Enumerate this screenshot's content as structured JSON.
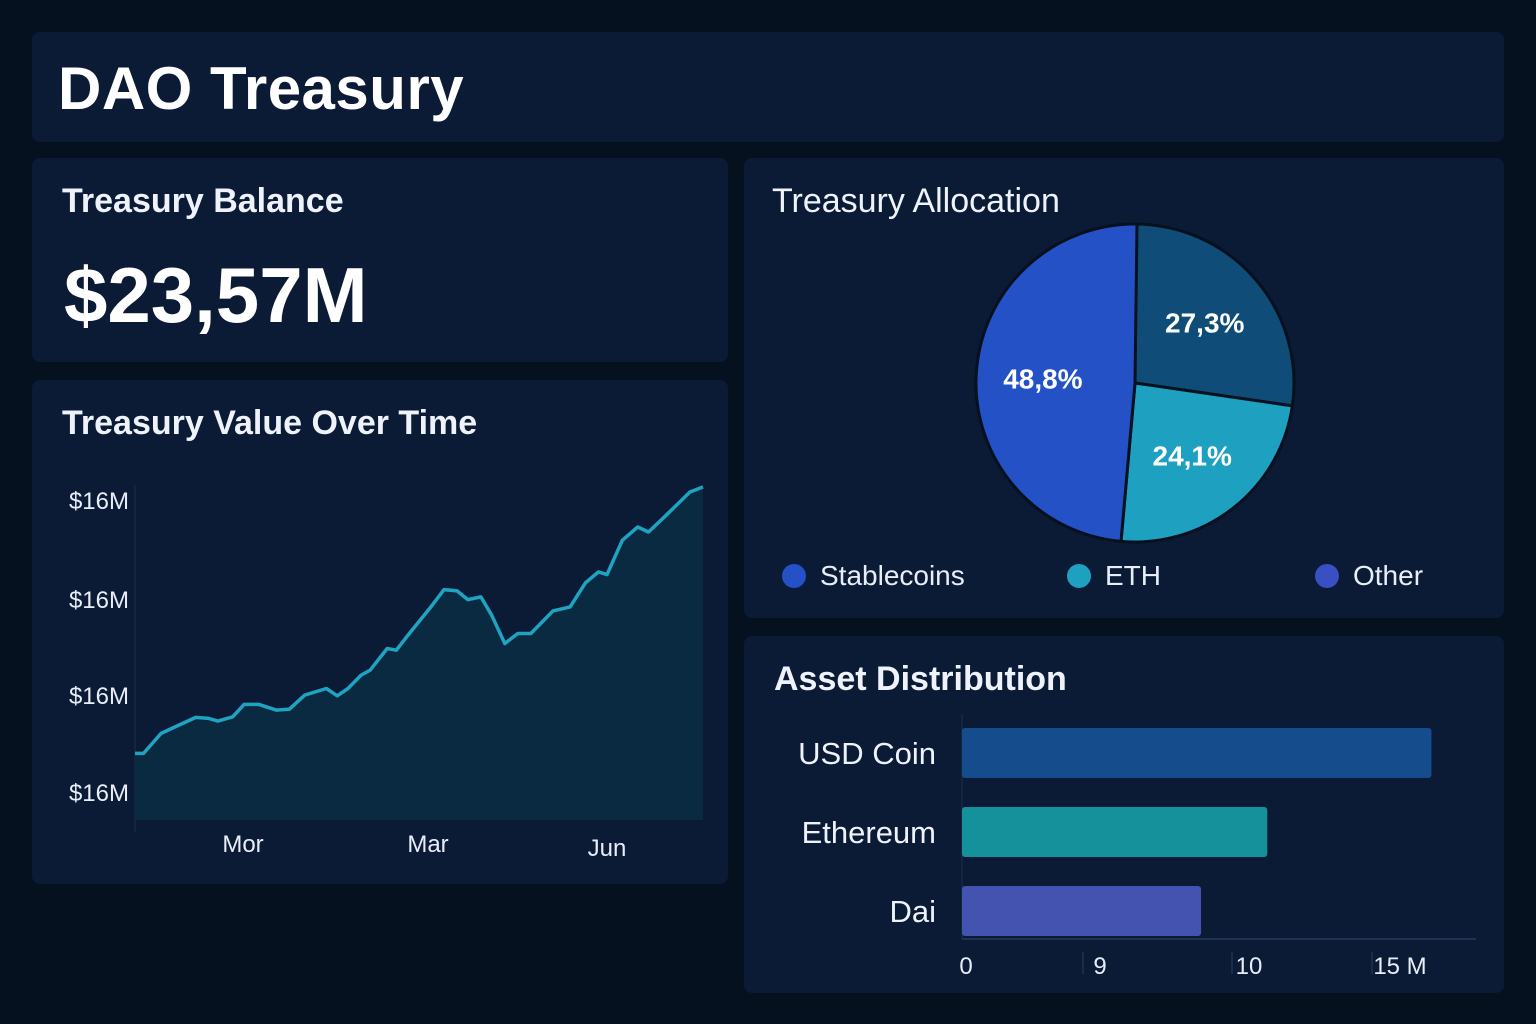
{
  "header": {
    "title": "DAO Treasury"
  },
  "balance": {
    "title": "Treasury Balance",
    "value": "$23,57M"
  },
  "colors": {
    "line": "#1fa3c0",
    "area": "#0a2a42",
    "stablecoins": "#2452c6",
    "eth": "#1ea0c0",
    "other": "#0f4c78",
    "other_legend": "#3a50c2",
    "usd_bar": "#154c8c",
    "eth_bar": "#14919a",
    "dai_bar": "#4553b0"
  },
  "chart_data": [
    {
      "type": "area",
      "title": "Treasury Value Over Time",
      "yticks": [
        "$16M",
        "$16M",
        "$16M",
        "$16M"
      ],
      "xticks": [
        "Mor",
        "Mar",
        "Jun"
      ],
      "ylim": [
        0,
        100
      ],
      "grid": false,
      "x": [
        0,
        1.5,
        4.6,
        8.4,
        10.7,
        13,
        14.6,
        17.2,
        19.2,
        21.8,
        24.9,
        27.2,
        29.9,
        33.7,
        35.6,
        37.5,
        39.8,
        41.4,
        44.4,
        46,
        48.3,
        52.1,
        54.4,
        56.7,
        58.6,
        60.9,
        62.8,
        65.1,
        67.4,
        69.7,
        73.6,
        76.6,
        79.3,
        81.6,
        83.1,
        85.8,
        88.5,
        90.4,
        93.5,
        97.7,
        100
      ],
      "values": [
        20,
        20,
        26,
        29,
        30.8,
        30.5,
        29.7,
        31,
        34.7,
        34.7,
        33,
        33.3,
        37.5,
        39.5,
        37.3,
        39.5,
        43.5,
        45,
        51.5,
        51,
        56,
        64,
        69.2,
        68.8,
        66.2,
        67,
        61.5,
        53,
        56,
        56,
        62.8,
        64,
        71.2,
        74.5,
        73.7,
        84,
        88,
        86.5,
        91.5,
        98.5,
        100
      ]
    },
    {
      "type": "pie",
      "title": "Treasury Allocation",
      "slices": [
        {
          "label": "27,3%",
          "value": 27.3
        },
        {
          "label": "24,1%",
          "value": 24.1
        },
        {
          "label": "48,8%",
          "value": 48.8
        }
      ],
      "legend": [
        "Stablecoins",
        "ETH",
        "Other"
      ],
      "legend_position": "bottom"
    },
    {
      "type": "bar",
      "orientation": "horizontal",
      "title": "Asset Distribution",
      "categories": [
        "USD Coin",
        "Ethereum",
        "Dai"
      ],
      "values": [
        16.3,
        10.6,
        8.3
      ],
      "xticks": [
        "0",
        "9",
        "10",
        "15 M"
      ],
      "xlim": [
        0,
        18
      ]
    }
  ]
}
